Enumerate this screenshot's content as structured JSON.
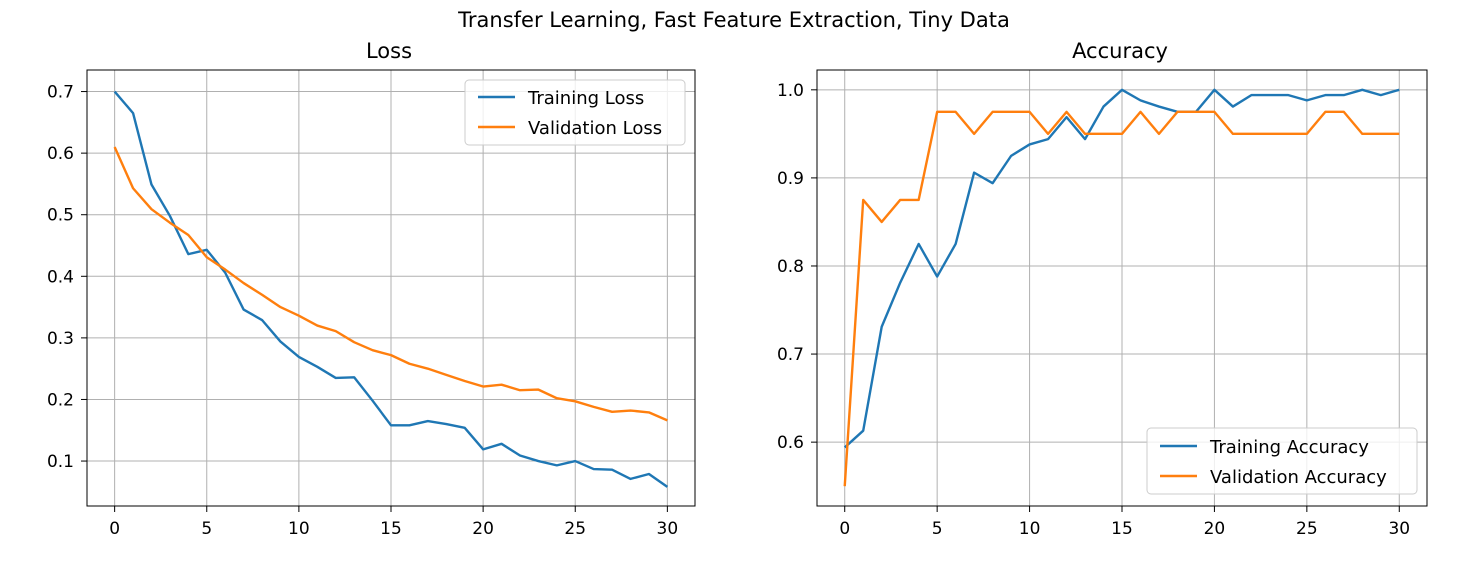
{
  "figure": {
    "suptitle": "Transfer Learning, Fast Feature Extraction, Tiny Data"
  },
  "chart_data": [
    {
      "type": "line",
      "title": "Loss",
      "xlabel": "",
      "ylabel": "",
      "xlim": [
        -1.5,
        31.5
      ],
      "ylim": [
        0.027,
        0.735
      ],
      "xticks": [
        0,
        5,
        10,
        15,
        20,
        25,
        30
      ],
      "yticks": [
        0.1,
        0.2,
        0.3,
        0.4,
        0.5,
        0.6,
        0.7
      ],
      "grid": true,
      "legend_position": "upper right",
      "x": [
        0,
        1,
        2,
        3,
        4,
        5,
        6,
        7,
        8,
        9,
        10,
        11,
        12,
        13,
        14,
        15,
        16,
        17,
        18,
        19,
        20,
        21,
        22,
        23,
        24,
        25,
        26,
        27,
        28,
        29,
        30
      ],
      "series": [
        {
          "name": "Training Loss",
          "color": "#1f77b4",
          "values": [
            0.7,
            0.665,
            0.549,
            0.498,
            0.436,
            0.443,
            0.406,
            0.346,
            0.329,
            0.294,
            0.269,
            0.253,
            0.235,
            0.236,
            0.198,
            0.158,
            0.158,
            0.165,
            0.16,
            0.154,
            0.119,
            0.128,
            0.109,
            0.1,
            0.093,
            0.1,
            0.087,
            0.086,
            0.071,
            0.079,
            0.058
          ]
        },
        {
          "name": "Validation Loss",
          "color": "#ff7f0e",
          "values": [
            0.61,
            0.543,
            0.509,
            0.487,
            0.467,
            0.431,
            0.411,
            0.389,
            0.37,
            0.35,
            0.336,
            0.32,
            0.311,
            0.293,
            0.28,
            0.272,
            0.258,
            0.25,
            0.24,
            0.23,
            0.221,
            0.224,
            0.215,
            0.216,
            0.202,
            0.197,
            0.188,
            0.18,
            0.182,
            0.179,
            0.166
          ]
        }
      ]
    },
    {
      "type": "line",
      "title": "Accuracy",
      "xlabel": "",
      "ylabel": "",
      "xlim": [
        -1.5,
        31.5
      ],
      "ylim": [
        0.5275,
        1.0225
      ],
      "xticks": [
        0,
        5,
        10,
        15,
        20,
        25,
        30
      ],
      "yticks": [
        0.6,
        0.7,
        0.8,
        0.9,
        1.0
      ],
      "grid": true,
      "legend_position": "lower right",
      "x": [
        0,
        1,
        2,
        3,
        4,
        5,
        6,
        7,
        8,
        9,
        10,
        11,
        12,
        13,
        14,
        15,
        16,
        17,
        18,
        19,
        20,
        21,
        22,
        23,
        24,
        25,
        26,
        27,
        28,
        29,
        30
      ],
      "series": [
        {
          "name": "Training Accuracy",
          "color": "#1f77b4",
          "values": [
            0.594,
            0.613,
            0.731,
            0.781,
            0.825,
            0.788,
            0.825,
            0.906,
            0.894,
            0.925,
            0.938,
            0.944,
            0.969,
            0.944,
            0.981,
            1.0,
            0.988,
            0.981,
            0.975,
            0.975,
            1.0,
            0.981,
            0.994,
            0.994,
            0.994,
            0.988,
            0.994,
            0.994,
            1.0,
            0.994,
            1.0
          ]
        },
        {
          "name": "Validation Accuracy",
          "color": "#ff7f0e",
          "values": [
            0.55,
            0.875,
            0.85,
            0.875,
            0.875,
            0.975,
            0.975,
            0.95,
            0.975,
            0.975,
            0.975,
            0.95,
            0.975,
            0.95,
            0.95,
            0.95,
            0.975,
            0.95,
            0.975,
            0.975,
            0.975,
            0.95,
            0.95,
            0.95,
            0.95,
            0.95,
            0.975,
            0.975,
            0.95,
            0.95,
            0.95
          ]
        }
      ]
    }
  ]
}
